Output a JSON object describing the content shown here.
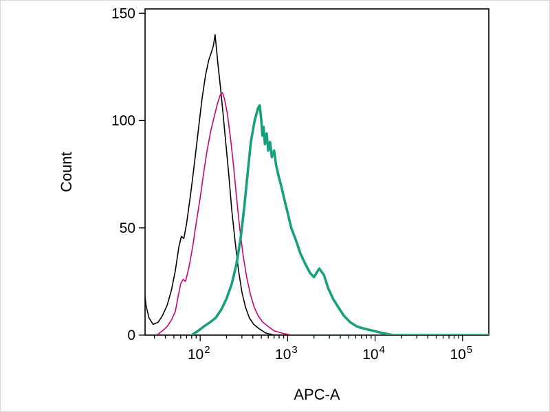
{
  "chart_data": {
    "type": "line",
    "subtype": "flow-cytometry-histogram-overlay",
    "title": "",
    "xlabel": "APC-A",
    "ylabel": "Count",
    "x_scale": "log10",
    "x_log10_range": [
      1.37,
      5.3
    ],
    "ylim": [
      0,
      152
    ],
    "yticks": [
      0,
      50,
      100,
      150
    ],
    "xticks": [
      {
        "value": 100,
        "base": "10",
        "exp": "2"
      },
      {
        "value": 1000,
        "base": "10",
        "exp": "3"
      },
      {
        "value": 10000,
        "base": "10",
        "exp": "4"
      },
      {
        "value": 100000,
        "base": "10",
        "exp": "5"
      }
    ],
    "grid": false,
    "legend": false,
    "axis_color": "#000000",
    "series": [
      {
        "name": "black-curve",
        "color": "#000000",
        "stroke_width": 1.6,
        "points": [
          [
            22,
            0
          ],
          [
            23,
            21
          ],
          [
            24,
            14
          ],
          [
            26,
            8
          ],
          [
            29,
            5
          ],
          [
            33,
            6
          ],
          [
            37,
            9
          ],
          [
            42,
            14
          ],
          [
            47,
            21
          ],
          [
            52,
            30
          ],
          [
            57,
            41
          ],
          [
            61,
            46
          ],
          [
            65,
            45
          ],
          [
            70,
            52
          ],
          [
            78,
            66
          ],
          [
            86,
            80
          ],
          [
            95,
            95
          ],
          [
            105,
            110
          ],
          [
            115,
            121
          ],
          [
            125,
            128
          ],
          [
            135,
            132
          ],
          [
            142,
            135
          ],
          [
            148,
            140
          ],
          [
            153,
            134
          ],
          [
            160,
            126
          ],
          [
            170,
            116
          ],
          [
            182,
            104
          ],
          [
            196,
            90
          ],
          [
            212,
            75
          ],
          [
            230,
            58
          ],
          [
            252,
            43
          ],
          [
            275,
            30
          ],
          [
            300,
            20
          ],
          [
            330,
            13
          ],
          [
            365,
            8
          ],
          [
            410,
            5
          ],
          [
            470,
            3
          ],
          [
            560,
            1
          ],
          [
            700,
            0
          ],
          [
            200000,
            0
          ]
        ]
      },
      {
        "name": "magenta-curve",
        "color": "#cf0072",
        "stroke_width": 1.6,
        "points": [
          [
            32,
            0
          ],
          [
            37,
            2
          ],
          [
            42,
            4
          ],
          [
            47,
            7
          ],
          [
            52,
            11
          ],
          [
            56,
            18
          ],
          [
            60,
            24
          ],
          [
            64,
            26
          ],
          [
            68,
            25
          ],
          [
            74,
            31
          ],
          [
            82,
            41
          ],
          [
            90,
            52
          ],
          [
            100,
            64
          ],
          [
            110,
            76
          ],
          [
            120,
            86
          ],
          [
            132,
            95
          ],
          [
            145,
            102
          ],
          [
            158,
            108
          ],
          [
            170,
            112
          ],
          [
            180,
            113
          ],
          [
            190,
            110
          ],
          [
            205,
            103
          ],
          [
            222,
            92
          ],
          [
            242,
            78
          ],
          [
            262,
            63
          ],
          [
            285,
            49
          ],
          [
            310,
            37
          ],
          [
            340,
            27
          ],
          [
            375,
            19
          ],
          [
            415,
            13
          ],
          [
            460,
            9
          ],
          [
            520,
            6
          ],
          [
            600,
            4
          ],
          [
            700,
            2
          ],
          [
            850,
            1
          ],
          [
            1100,
            0
          ],
          [
            200000,
            0
          ]
        ]
      },
      {
        "name": "teal-curve",
        "color": "#16a07c",
        "stroke_width": 3.6,
        "points": [
          [
            80,
            0
          ],
          [
            95,
            2
          ],
          [
            110,
            4
          ],
          [
            130,
            6
          ],
          [
            150,
            8
          ],
          [
            175,
            12
          ],
          [
            200,
            17
          ],
          [
            230,
            24
          ],
          [
            260,
            33
          ],
          [
            290,
            45
          ],
          [
            320,
            60
          ],
          [
            350,
            76
          ],
          [
            380,
            90
          ],
          [
            420,
            100
          ],
          [
            460,
            106
          ],
          [
            480,
            107
          ],
          [
            500,
            100
          ],
          [
            515,
            93
          ],
          [
            530,
            97
          ],
          [
            550,
            89
          ],
          [
            575,
            94
          ],
          [
            600,
            86
          ],
          [
            630,
            90
          ],
          [
            660,
            83
          ],
          [
            700,
            86
          ],
          [
            740,
            79
          ],
          [
            790,
            74
          ],
          [
            850,
            69
          ],
          [
            920,
            63
          ],
          [
            1000,
            57
          ],
          [
            1100,
            50
          ],
          [
            1250,
            44
          ],
          [
            1400,
            38
          ],
          [
            1600,
            33
          ],
          [
            1800,
            29
          ],
          [
            2000,
            27
          ],
          [
            2300,
            31
          ],
          [
            2600,
            28
          ],
          [
            2900,
            22
          ],
          [
            3300,
            17
          ],
          [
            3800,
            13
          ],
          [
            4400,
            9
          ],
          [
            5200,
            6
          ],
          [
            6200,
            4
          ],
          [
            7500,
            3
          ],
          [
            9500,
            2
          ],
          [
            12000,
            1
          ],
          [
            16000,
            0
          ],
          [
            200000,
            0
          ]
        ]
      }
    ]
  }
}
